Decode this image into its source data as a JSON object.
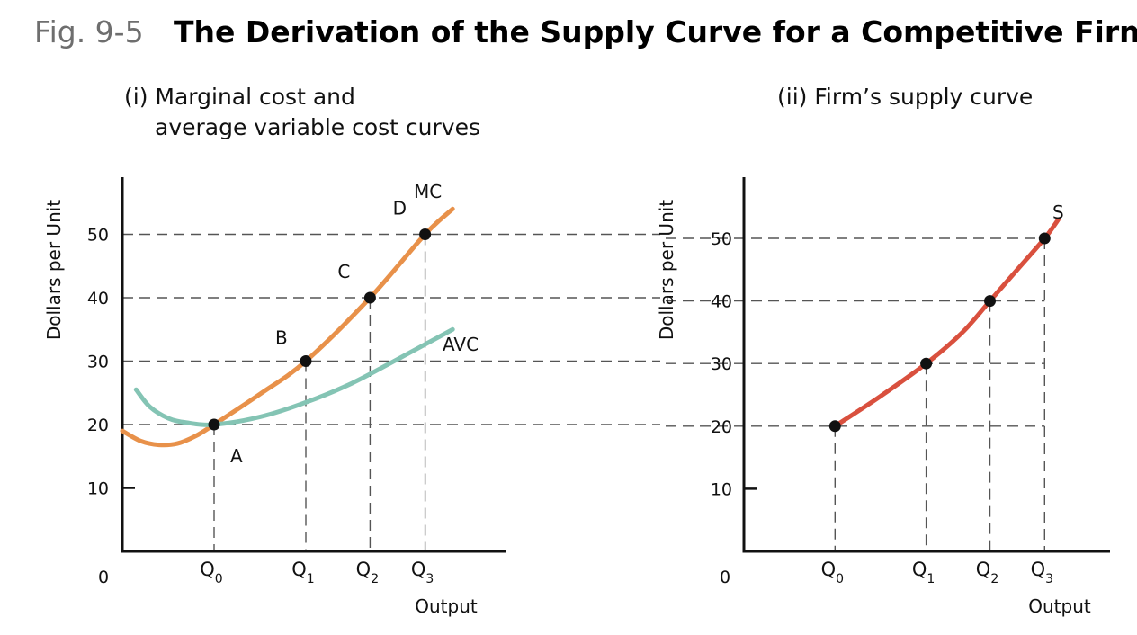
{
  "figure": {
    "label": "Fig. 9-5",
    "title": "The Derivation of the Supply Curve for a Competitive Firm"
  },
  "chart_data": [
    {
      "type": "line",
      "panel_title_lines": [
        "(i)  Marginal cost and",
        "average variable cost curves"
      ],
      "xlabel": "Output",
      "ylabel": "Dollars per Unit",
      "origin_label": "0",
      "y_ticks": [
        10,
        20,
        30,
        40,
        50
      ],
      "ylim": [
        0,
        58
      ],
      "x_ticks": [
        {
          "main": "Q",
          "sub": "0",
          "x": 1
        },
        {
          "main": "Q",
          "sub": "1",
          "x": 2
        },
        {
          "main": "Q",
          "sub": "2",
          "x": 2.7
        },
        {
          "main": "Q",
          "sub": "3",
          "x": 3.3
        }
      ],
      "xlim": [
        0,
        4.5
      ],
      "series": [
        {
          "name": "MC",
          "color": "#e8914a",
          "x": [
            0,
            0.2,
            0.4,
            0.6,
            0.8,
            1,
            1.5,
            2,
            2.7,
            3.3,
            3.6
          ],
          "y": [
            19,
            17.4,
            16.8,
            17,
            18.2,
            20,
            24.8,
            30,
            40,
            50,
            54
          ]
        },
        {
          "name": "AVC",
          "color": "#84c4b4",
          "x": [
            0.15,
            0.3,
            0.5,
            0.7,
            1,
            1.5,
            2,
            2.5,
            3,
            3.6
          ],
          "y": [
            25.5,
            22.8,
            21,
            20.3,
            20,
            21.2,
            23.5,
            26.5,
            30.3,
            35
          ]
        }
      ],
      "points": [
        {
          "label": "A",
          "x": 1,
          "y": 20
        },
        {
          "label": "B",
          "x": 2,
          "y": 30
        },
        {
          "label": "C",
          "x": 2.7,
          "y": 40
        },
        {
          "label": "D",
          "x": 3.3,
          "y": 50
        }
      ],
      "guides": [
        20,
        30,
        40,
        50
      ],
      "grid": false
    },
    {
      "type": "line",
      "panel_title_lines": [
        "(ii)  Firm’s supply curve"
      ],
      "xlabel": "Output",
      "ylabel": "Dollars per Unit",
      "origin_label": "0",
      "y_ticks": [
        10,
        20,
        30,
        40,
        50
      ],
      "ylim": [
        0,
        57
      ],
      "x_ticks": [
        {
          "main": "Q",
          "sub": "0",
          "x": 1
        },
        {
          "main": "Q",
          "sub": "1",
          "x": 2
        },
        {
          "main": "Q",
          "sub": "2",
          "x": 2.7
        },
        {
          "main": "Q",
          "sub": "3",
          "x": 3.3
        }
      ],
      "xlim": [
        0,
        4.5
      ],
      "series": [
        {
          "name": "S",
          "color": "#d9503e",
          "x": [
            1,
            1.5,
            2,
            2.4,
            2.7,
            3,
            3.3,
            3.45
          ],
          "y": [
            20,
            24.8,
            30,
            35,
            40,
            45,
            50,
            53
          ]
        }
      ],
      "points": [
        {
          "x": 1,
          "y": 20
        },
        {
          "x": 2,
          "y": 30
        },
        {
          "x": 2.7,
          "y": 40
        },
        {
          "x": 3.3,
          "y": 50
        }
      ],
      "guides": [
        20,
        30,
        40,
        50
      ],
      "grid": false
    }
  ]
}
